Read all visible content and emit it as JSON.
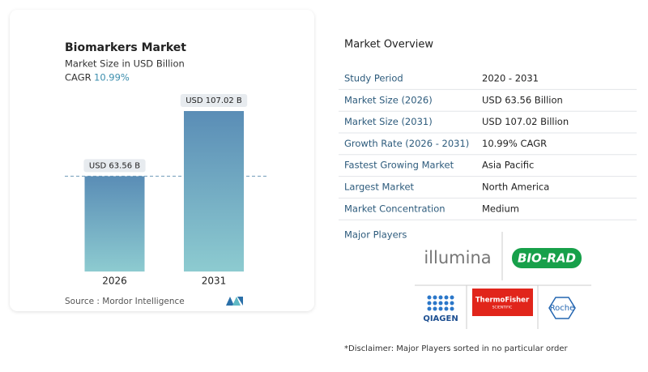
{
  "chart_data": {
    "type": "bar",
    "title": "Biomarkers Market",
    "subtitle": "Market Size in USD Billion",
    "cagr_label": "CAGR",
    "cagr_value": "10.99%",
    "categories": [
      "2026",
      "2031"
    ],
    "values": [
      63.56,
      107.02
    ],
    "value_labels": [
      "USD 63.56 B",
      "USD 107.02 B"
    ],
    "source": "Source :  Mordor Intelligence"
  },
  "overview": {
    "title": "Market Overview",
    "rows": [
      [
        "Study Period",
        "2020 - 2031"
      ],
      [
        "Market Size (2026)",
        "USD 63.56 Billion"
      ],
      [
        "Market Size (2031)",
        "USD 107.02 Billion"
      ],
      [
        "Growth Rate (2026 - 2031)",
        "10.99% CAGR"
      ],
      [
        "Fastest Growing Market",
        "Asia Pacific"
      ],
      [
        "Largest Market",
        "North America"
      ],
      [
        "Market Concentration",
        "Medium"
      ]
    ]
  },
  "major_players": {
    "title": "Major Players",
    "logos": [
      "illumina",
      "BIO-RAD",
      "QIAGEN",
      "ThermoFisher",
      "SCIENTIFIC",
      "Roche"
    ]
  },
  "disclaimer": "*Disclaimer: Major Players sorted in no particular order"
}
